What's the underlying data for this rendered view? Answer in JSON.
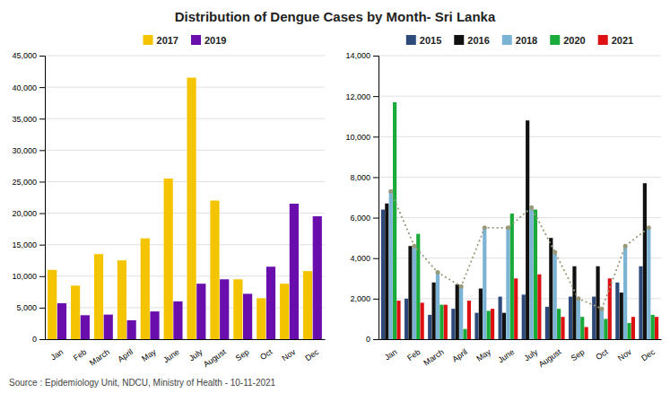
{
  "chart_data": [
    {
      "type": "bar",
      "title": "Distribution of  Dengue Cases by Month- Sri Lanka",
      "annotations": [
        "Source : Epidemiology Unit, NDCU, Ministry of Health - 10-11-2021"
      ],
      "categories": [
        "Jan",
        "Feb",
        "March",
        "April",
        "May",
        "June",
        "July",
        "August",
        "Sep",
        "Oct",
        "Nov",
        "Dec"
      ],
      "series": [
        {
          "name": "2017",
          "color": "#f5c400",
          "values": [
            11000,
            8500,
            13500,
            12500,
            16000,
            25500,
            41500,
            22000,
            9500,
            6500,
            8800,
            10800
          ]
        },
        {
          "name": "2019",
          "color": "#6a0dad",
          "values": [
            5700,
            3800,
            3900,
            3000,
            4400,
            6000,
            8800,
            9500,
            7200,
            11500,
            21500,
            19500
          ]
        }
      ],
      "ylim": [
        0,
        45000
      ],
      "yticks": [
        0,
        {
          "value": 5000,
          "label": "5,000"
        },
        {
          "value": 10000,
          "label": "10,000"
        },
        {
          "value": 15000,
          "label": "15,000"
        },
        {
          "value": 20000,
          "label": "20,000"
        },
        {
          "value": 25000,
          "label": "25,000"
        },
        {
          "value": 30000,
          "label": "30,000"
        },
        {
          "value": 35000,
          "label": "35,000"
        },
        {
          "value": 40000,
          "label": "40,000"
        },
        {
          "value": 45000,
          "label": "45,000"
        }
      ],
      "grid": true,
      "legend": "top"
    },
    {
      "type": "bar",
      "categories": [
        "Jan",
        "Feb",
        "March",
        "April",
        "May",
        "June",
        "July",
        "August",
        "Sep",
        "Oct",
        "Nov",
        "Dec"
      ],
      "series": [
        {
          "name": "2015",
          "color": "#2e4a7a",
          "values": [
            6400,
            2000,
            1200,
            1500,
            1300,
            2100,
            2200,
            1600,
            2100,
            2100,
            2800,
            3600
          ]
        },
        {
          "name": "2016",
          "color": "#111111",
          "values": [
            6700,
            4600,
            2800,
            2700,
            2500,
            1300,
            10800,
            5000,
            3600,
            3600,
            2300,
            7700
          ]
        },
        {
          "name": "2018",
          "color": "#7ab3d4",
          "values": [
            7300,
            4600,
            3300,
            2600,
            5500,
            5500,
            6500,
            4300,
            2000,
            1500,
            4600,
            5500
          ]
        },
        {
          "name": "2020",
          "color": "#1aaa3a",
          "values": [
            11700,
            5200,
            1700,
            500,
            1400,
            6200,
            6400,
            1500,
            1100,
            1000,
            800,
            1200
          ]
        },
        {
          "name": "2021",
          "color": "#dd1111",
          "values": [
            1900,
            1800,
            1700,
            1900,
            1500,
            3000,
            3200,
            1100,
            600,
            3000,
            1100,
            1100
          ]
        },
        {
          "type": "line",
          "color": "#9a9a7a",
          "line_style": "dotted",
          "marker": "circle",
          "values": [
            7300,
            4600,
            3300,
            2600,
            5500,
            5500,
            6500,
            4300,
            2000,
            1500,
            4600,
            5500
          ]
        }
      ],
      "ylim": [
        0,
        14000
      ],
      "yticks": [
        0,
        {
          "value": 2000,
          "label": "2,000"
        },
        {
          "value": 4000,
          "label": "4,000"
        },
        {
          "value": 6000,
          "label": "6,000"
        },
        {
          "value": 8000,
          "label": "8,000"
        },
        {
          "value": 10000,
          "label": "10,000"
        },
        {
          "value": 12000,
          "label": "12,000"
        },
        {
          "value": 14000,
          "label": "14,000"
        }
      ],
      "grid": true,
      "legend": "top"
    }
  ]
}
